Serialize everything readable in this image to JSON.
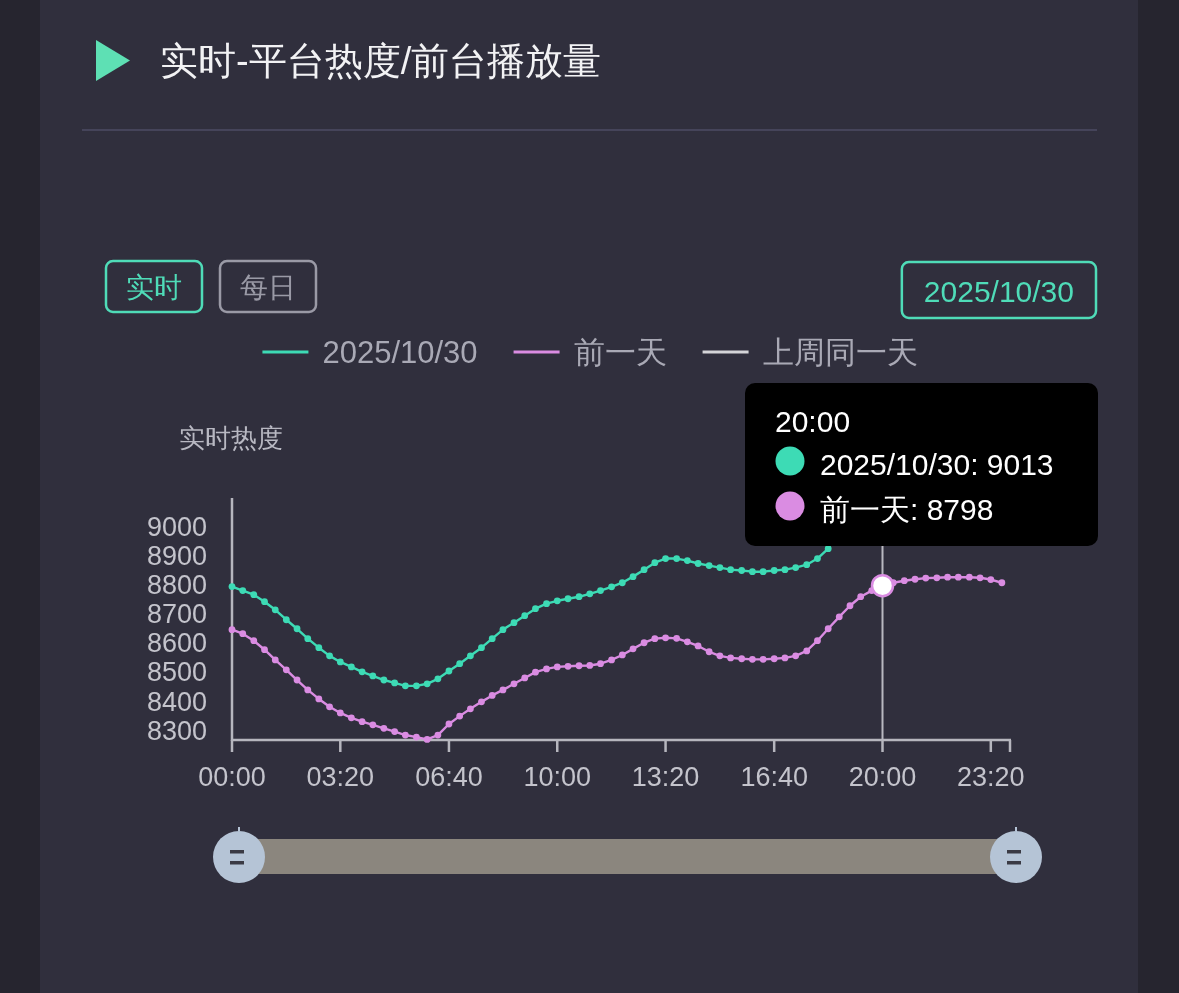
{
  "chart_data": {
    "type": "line",
    "title": "实时-平台热度/前台播放量",
    "ylabel": "实时热度",
    "x": [
      0,
      0.33,
      0.67,
      1,
      1.33,
      1.67,
      2,
      2.33,
      2.67,
      3,
      3.33,
      3.67,
      4,
      4.33,
      4.67,
      5,
      5.33,
      5.67,
      6,
      6.33,
      6.67,
      7,
      7.33,
      7.67,
      8,
      8.33,
      8.67,
      9,
      9.33,
      9.67,
      10,
      10.33,
      10.67,
      11,
      11.33,
      11.67,
      12,
      12.33,
      12.67,
      13,
      13.33,
      13.67,
      14,
      14.33,
      14.67,
      15,
      15.33,
      15.67,
      16,
      16.33,
      16.67,
      17,
      17.33,
      17.67,
      18,
      18.33,
      18.67,
      19,
      19.33,
      19.67,
      20,
      20.33,
      20.67,
      21,
      21.33,
      21.67,
      22,
      22.33,
      22.67,
      23,
      23.33,
      23.67
    ],
    "series": [
      {
        "name": "2025/10/30",
        "color": "#3ddbb5",
        "values": [
          8795,
          8781,
          8767,
          8743,
          8715,
          8681,
          8650,
          8616,
          8585,
          8557,
          8536,
          8519,
          8502,
          8488,
          8474,
          8464,
          8454,
          8454,
          8461,
          8478,
          8505,
          8530,
          8557,
          8585,
          8616,
          8647,
          8671,
          8695,
          8719,
          8736,
          8746,
          8753,
          8760,
          8770,
          8781,
          8794,
          8808,
          8829,
          8853,
          8877,
          8891,
          8891,
          8884,
          8874,
          8867,
          8860,
          8853,
          8850,
          8846,
          8846,
          8850,
          8853,
          8860,
          8870,
          8891,
          8925,
          null,
          null,
          null,
          null,
          null,
          null,
          null,
          null,
          null,
          null,
          null,
          null,
          null,
          null,
          null,
          null
        ]
      },
      {
        "name": "前一天",
        "color": "#da8ce2",
        "values": [
          8647,
          8633,
          8609,
          8578,
          8543,
          8509,
          8474,
          8440,
          8409,
          8382,
          8361,
          8344,
          8331,
          8320,
          8308,
          8297,
          8285,
          8278,
          8270,
          8285,
          8323,
          8350,
          8375,
          8399,
          8421,
          8440,
          8461,
          8481,
          8501,
          8512,
          8519,
          8521,
          8523,
          8524,
          8530,
          8543,
          8560,
          8581,
          8602,
          8616,
          8619,
          8617,
          8605,
          8591,
          8571,
          8557,
          8550,
          8547,
          8545,
          8545,
          8547,
          8550,
          8557,
          8574,
          8609,
          8650,
          8691,
          8729,
          8760,
          8781,
          8798,
          8808,
          8815,
          8820,
          8824,
          8825,
          8827,
          8827,
          8827,
          8825,
          8819,
          8808
        ]
      },
      {
        "name": "上周同一天",
        "color": "#d4d4d8",
        "values": [
          null,
          null,
          null,
          null,
          null,
          null,
          null,
          null,
          null,
          null,
          null,
          null,
          null,
          null,
          null,
          null,
          null,
          null,
          null,
          null,
          null,
          null,
          null,
          null,
          null,
          null,
          null,
          null,
          null,
          null,
          null,
          null,
          null,
          null,
          null,
          null,
          null,
          null,
          null,
          null,
          null,
          null,
          null,
          null,
          null,
          null,
          null,
          null,
          null,
          null,
          null,
          null,
          null,
          null,
          null,
          null,
          null,
          null,
          null,
          null,
          null,
          null,
          null,
          null,
          null,
          null,
          null,
          null,
          null,
          null,
          null,
          null
        ]
      }
    ],
    "xlim": [
      0,
      23.92
    ],
    "xticks": [
      {
        "value": 0,
        "label": "00:00"
      },
      {
        "value": 3.33,
        "label": "03:20"
      },
      {
        "value": 6.67,
        "label": "06:40"
      },
      {
        "value": 10,
        "label": "10:00"
      },
      {
        "value": 13.33,
        "label": "13:20"
      },
      {
        "value": 16.67,
        "label": "16:40"
      },
      {
        "value": 20,
        "label": "20:00"
      },
      {
        "value": 23.33,
        "label": "23:20"
      },
      {
        "value": 23.92,
        "label": null
      }
    ],
    "ylim": [
      8268,
      9099
    ],
    "yticks": [
      8300,
      8400,
      8500,
      8600,
      8700,
      8800,
      8900,
      9000
    ],
    "legend": "top",
    "marker": "circle",
    "line_style": "solid",
    "ref_lines": [
      {
        "axis": "x",
        "value": 20,
        "color": "#b8b8c0"
      }
    ],
    "annotations": [
      "实时",
      "每日",
      "2025/10/30",
      "20:00",
      "2025/10/30: 9013",
      "前一天: 8798"
    ]
  }
}
